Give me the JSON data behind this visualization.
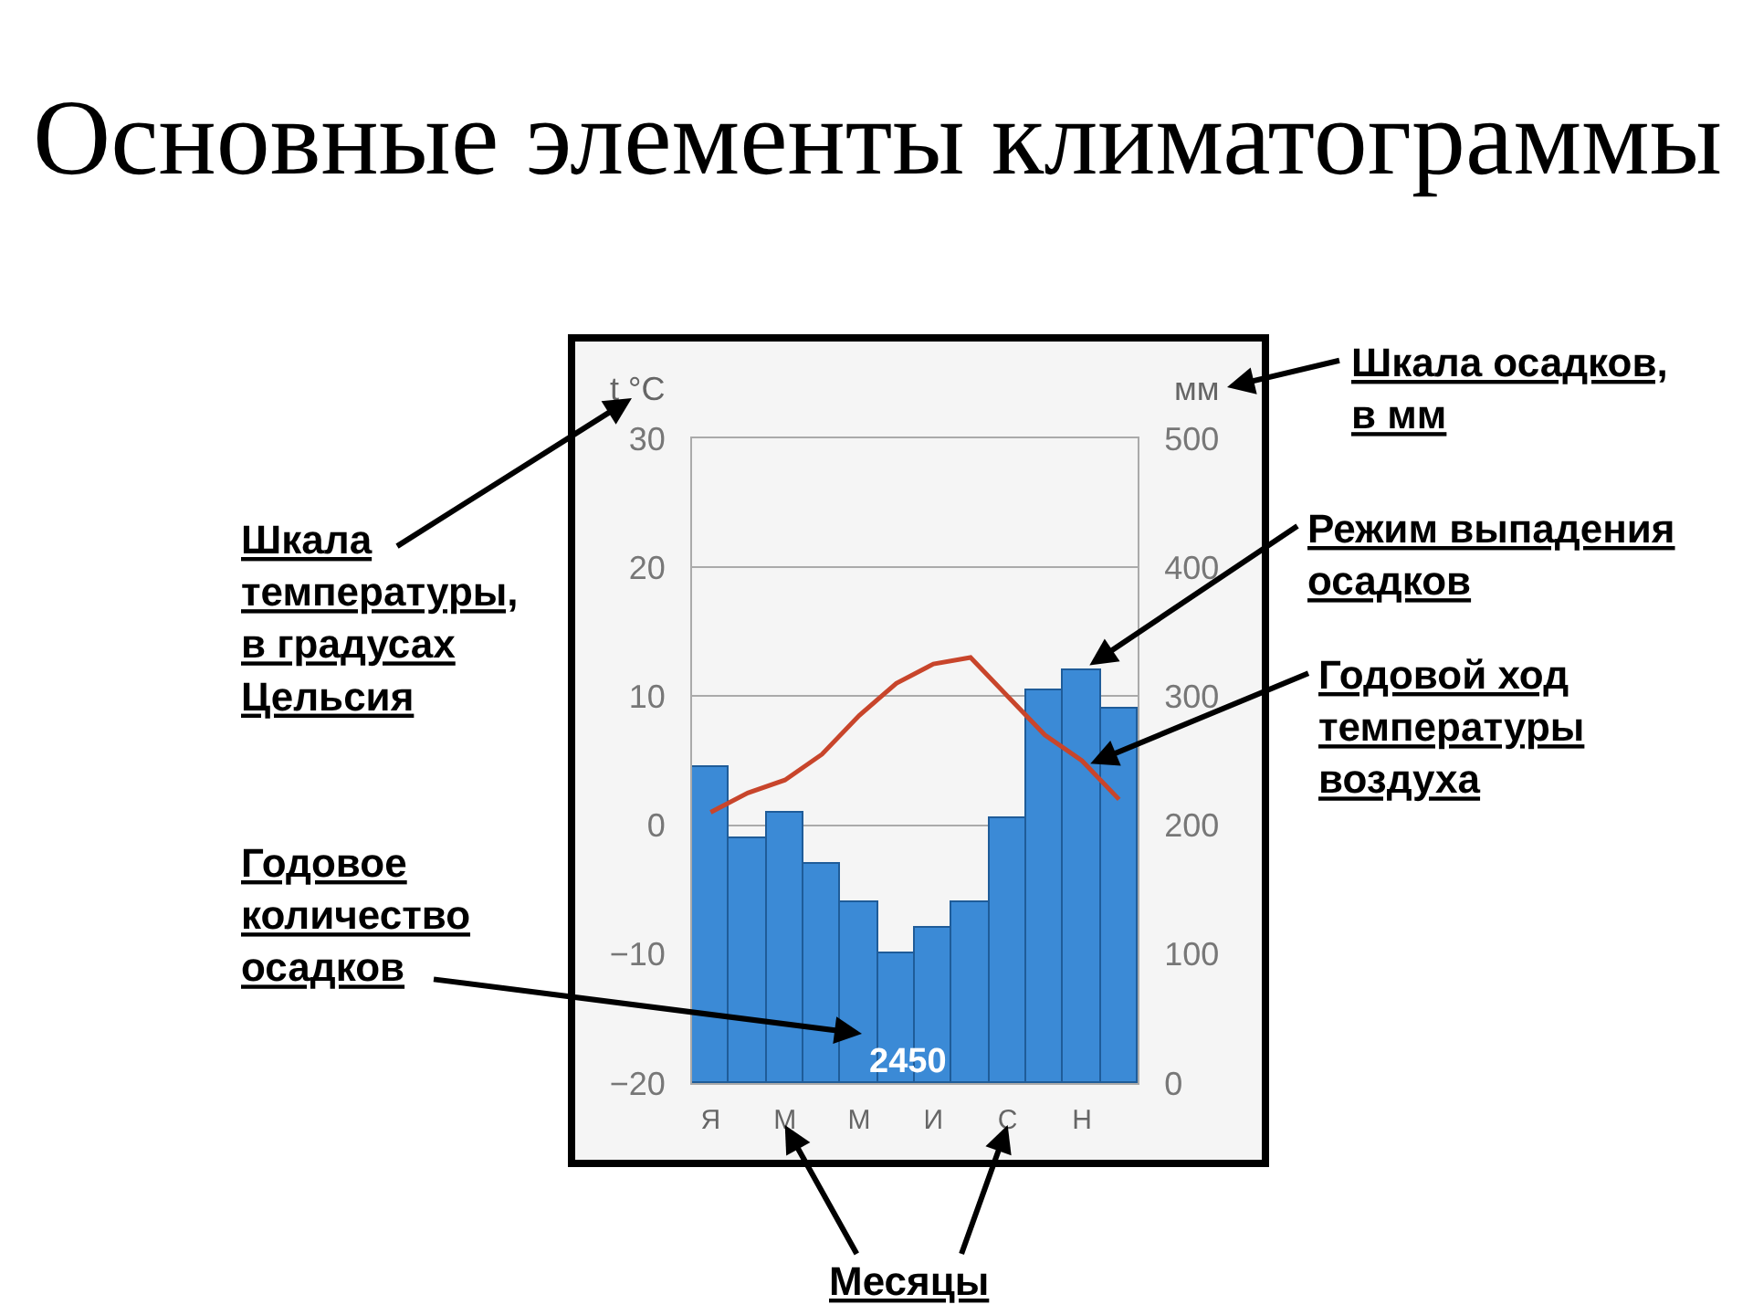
{
  "chart_data": {
    "type": "bar",
    "title": "Основные элементы климатограммы",
    "ylabel": "t °C",
    "y2label": "мм",
    "categories": [
      "Я",
      null,
      "М",
      null,
      "М",
      null,
      "И",
      null,
      "С",
      null,
      "Н",
      null
    ],
    "series": [
      {
        "axis": "y2",
        "color": "#3b8ad6",
        "values": [
          245,
          190,
          210,
          170,
          140,
          100,
          120,
          140,
          205,
          305,
          320,
          290
        ]
      },
      {
        "type": "line",
        "axis": "y",
        "color": "#c8452b",
        "values": [
          1,
          2.5,
          3.5,
          5.5,
          8.5,
          11,
          12.5,
          13,
          10,
          7,
          5,
          2
        ]
      }
    ],
    "ylim": [
      -20,
      30
    ],
    "yticks": [
      -20,
      -10,
      0,
      10,
      20,
      30
    ],
    "y2lim": [
      0,
      500
    ],
    "y2ticks": [
      0,
      100,
      200,
      300,
      400,
      500
    ],
    "grid": "y",
    "annotations": [
      "Шкала\nтемпературы,\nв градусах\nЦельсия",
      "Годовое\nколичество\nосадков",
      "Шкала осадков,\nв мм",
      {
        "text": "Режим выпадения\nосадков",
        "x": "Н",
        "y": 12
      },
      {
        "text": "Годовой ход\nтемпературы\nвоздуха",
        "x": "Н",
        "y": 4.5
      },
      "Месяцы",
      "2450"
    ]
  }
}
